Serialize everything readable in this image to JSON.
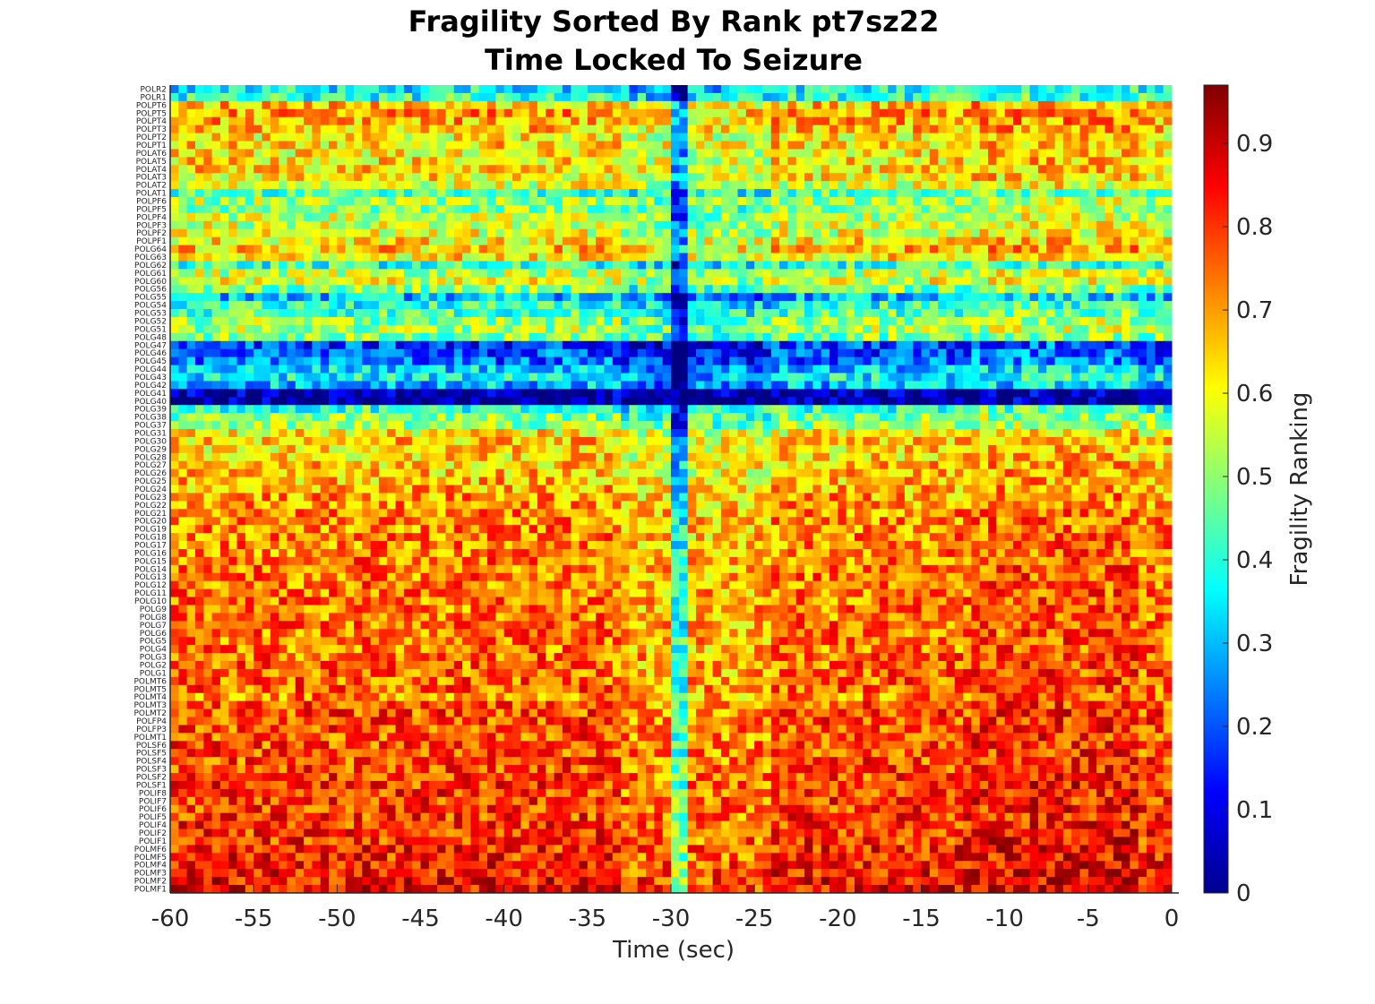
{
  "chart_data": {
    "type": "heatmap",
    "title": "Fragility Sorted By Rank pt7sz22",
    "subtitle": "Time Locked To Seizure",
    "xlabel": "Time (sec)",
    "colorbar_label": "Fragility Ranking",
    "xlim": [
      -60,
      0
    ],
    "x_ticks": [
      "-60",
      "-55",
      "-50",
      "-45",
      "-40",
      "-35",
      "-30",
      "-25",
      "-20",
      "-15",
      "-10",
      "-5",
      "0"
    ],
    "colorbar_ticks": [
      "0",
      "0.1",
      "0.2",
      "0.3",
      "0.4",
      "0.5",
      "0.6",
      "0.7",
      "0.8",
      "0.9"
    ],
    "colorbar_range": [
      0,
      0.97
    ],
    "colormap": "jet",
    "time_bins": 120,
    "channels": [
      "POLR2",
      "POLR1",
      "POLPT6",
      "POLPT5",
      "POLPT4",
      "POLPT3",
      "POLPT2",
      "POLPT1",
      "POLAT6",
      "POLAT5",
      "POLAT4",
      "POLAT3",
      "POLAT2",
      "POLAT1",
      "POLPF6",
      "POLPF5",
      "POLPF4",
      "POLPF3",
      "POLPF2",
      "POLPF1",
      "POLG64",
      "POLG63",
      "POLG62",
      "POLG61",
      "POLG60",
      "POLG56",
      "POLG55",
      "POLG54",
      "POLG53",
      "POLG52",
      "POLG51",
      "POLG48",
      "POLG47",
      "POLG46",
      "POLG45",
      "POLG44",
      "POLG43",
      "POLG42",
      "POLG41",
      "POLG40",
      "POLG39",
      "POLG38",
      "POLG37",
      "POLG31",
      "POLG30",
      "POLG29",
      "POLG28",
      "POLG27",
      "POLG26",
      "POLG25",
      "POLG24",
      "POLG23",
      "POLG22",
      "POLG21",
      "POLG20",
      "POLG19",
      "POLG18",
      "POLG17",
      "POLG16",
      "POLG15",
      "POLG14",
      "POLG13",
      "POLG12",
      "POLG11",
      "POLG10",
      "POLG9",
      "POLG8",
      "POLG7",
      "POLG6",
      "POLG5",
      "POLG4",
      "POLG3",
      "POLG2",
      "POLG1",
      "POLMT6",
      "POLMT5",
      "POLMT4",
      "POLMT3",
      "POLMT2",
      "POLFP4",
      "POLFP3",
      "POLMT1",
      "POLSF6",
      "POLSF5",
      "POLSF4",
      "POLSF3",
      "POLSF2",
      "POLSF1",
      "POLIF8",
      "POLIF7",
      "POLIF6",
      "POLIF5",
      "POLIF4",
      "POLIF2",
      "POLIF1",
      "POLMF6",
      "POLMF5",
      "POLMF4",
      "POLMF3",
      "POLMF2",
      "POLMF1"
    ],
    "channel_mean_ranking": [
      0.36,
      0.4,
      0.66,
      0.7,
      0.68,
      0.66,
      0.62,
      0.64,
      0.62,
      0.63,
      0.64,
      0.62,
      0.58,
      0.44,
      0.52,
      0.5,
      0.54,
      0.56,
      0.58,
      0.62,
      0.66,
      0.62,
      0.4,
      0.55,
      0.58,
      0.48,
      0.3,
      0.4,
      0.44,
      0.5,
      0.52,
      0.48,
      0.18,
      0.2,
      0.22,
      0.32,
      0.36,
      0.3,
      0.04,
      0.03,
      0.42,
      0.48,
      0.5,
      0.62,
      0.66,
      0.64,
      0.64,
      0.66,
      0.66,
      0.67,
      0.68,
      0.7,
      0.7,
      0.72,
      0.72,
      0.72,
      0.72,
      0.72,
      0.72,
      0.74,
      0.74,
      0.74,
      0.74,
      0.74,
      0.74,
      0.74,
      0.74,
      0.74,
      0.74,
      0.74,
      0.74,
      0.75,
      0.75,
      0.75,
      0.76,
      0.76,
      0.72,
      0.77,
      0.78,
      0.78,
      0.78,
      0.78,
      0.78,
      0.78,
      0.78,
      0.79,
      0.79,
      0.8,
      0.8,
      0.8,
      0.8,
      0.8,
      0.8,
      0.81,
      0.81,
      0.82,
      0.82,
      0.83,
      0.84,
      0.85,
      0.86
    ]
  }
}
